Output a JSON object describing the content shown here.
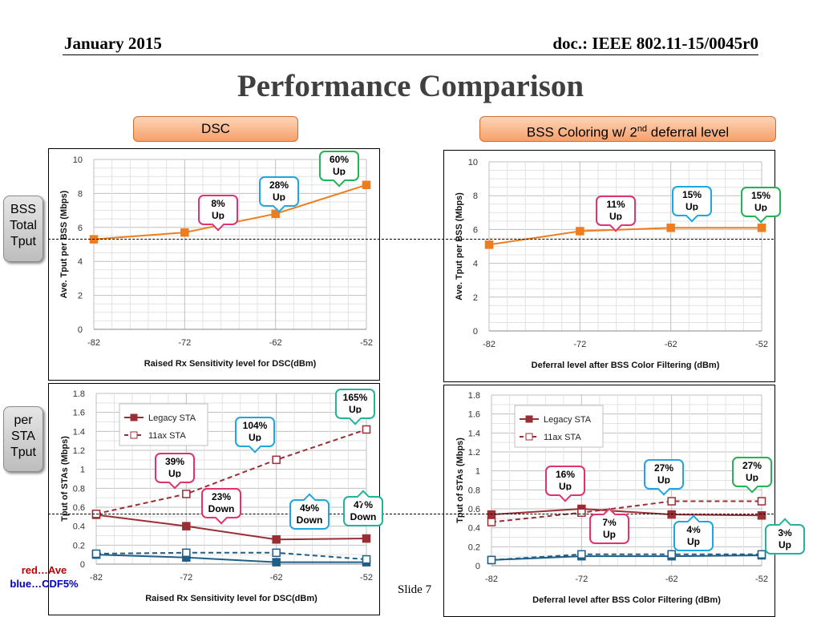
{
  "header": {
    "left": "January 2015",
    "right": "doc.: IEEE 802.11-15/0045r0"
  },
  "title": "Performance Comparison",
  "tags": {
    "dsc": "DSC",
    "bss_prefix": "BSS Coloring w/ 2",
    "bss_sup": "nd",
    "bss_suffix": " deferral level"
  },
  "side_labels": {
    "bss": [
      "BSS",
      "Total",
      "Tput"
    ],
    "sta": [
      "per",
      "STA",
      "Tput"
    ]
  },
  "note": {
    "red": "red…Ave",
    "blue": "blue…CDF5%"
  },
  "slide": "Slide 7",
  "colors": {
    "orange": "#ed7d1f",
    "red": "#9b2d35",
    "blue": "#1f5f87"
  },
  "chart_data": [
    {
      "type": "line",
      "xlabel": "Raised Rx Sensitivity level for DSC(dBm)",
      "ylabel": "Ave. Tput per BSS (Mbps)",
      "x": [
        -82,
        -72,
        -62,
        -52
      ],
      "ylim": [
        0,
        10
      ],
      "yticks": [
        0,
        2,
        4,
        6,
        8,
        10
      ],
      "series": [
        {
          "values": [
            5.3,
            5.7,
            6.8,
            8.5
          ],
          "style": "orange-square"
        }
      ],
      "callouts": [
        {
          "text": [
            "8%",
            "Up"
          ],
          "color": "pink"
        },
        {
          "text": [
            "28%",
            "Up"
          ],
          "color": "blue"
        },
        {
          "text": [
            "60%",
            "Up"
          ],
          "color": "green"
        }
      ]
    },
    {
      "type": "line",
      "xlabel": "Deferral level after BSS Color Filtering (dBm)",
      "ylabel": "Ave. Tput per BSS (Mbps)",
      "x": [
        -82,
        -72,
        -62,
        -52
      ],
      "ylim": [
        0,
        10
      ],
      "yticks": [
        0,
        2,
        4,
        6,
        8,
        10
      ],
      "series": [
        {
          "values": [
            5.1,
            5.9,
            6.1,
            6.1
          ],
          "style": "orange-square"
        }
      ],
      "callouts": [
        {
          "text": [
            "11%",
            "Up"
          ],
          "color": "pink"
        },
        {
          "text": [
            "15%",
            "Up"
          ],
          "color": "blue"
        },
        {
          "text": [
            "15%",
            "Up"
          ],
          "color": "green"
        }
      ]
    },
    {
      "type": "line",
      "xlabel": "Raised Rx Sensitivity level for DSC(dBm)",
      "ylabel": "Tput of STAs (Mbps)",
      "x": [
        -82,
        -72,
        -62,
        -52
      ],
      "ylim": [
        0,
        1.8
      ],
      "yticks": [
        0,
        0.2,
        0.4,
        0.6,
        0.8,
        1,
        1.2,
        1.4,
        1.6,
        1.8
      ],
      "legend": [
        "Legacy STA",
        "11ax STA"
      ],
      "series": [
        {
          "name": "Legacy STA",
          "values": [
            0.52,
            0.4,
            0.26,
            0.27
          ],
          "style": "red-solid"
        },
        {
          "name": "11ax STA",
          "values": [
            0.53,
            0.74,
            1.1,
            1.42
          ],
          "style": "red-dash"
        },
        {
          "values": [
            0.1,
            0.07,
            0.02,
            0.02
          ],
          "style": "blue-solid"
        },
        {
          "values": [
            0.11,
            0.12,
            0.12,
            0.05
          ],
          "style": "blue-dash"
        }
      ],
      "callouts": [
        {
          "text": [
            "39%",
            "Up"
          ],
          "color": "pink"
        },
        {
          "text": [
            "104%",
            "Up"
          ],
          "color": "blue"
        },
        {
          "text": [
            "165%",
            "Up"
          ],
          "color": "teal"
        },
        {
          "text": [
            "23%",
            "Down"
          ],
          "color": "pink"
        },
        {
          "text": [
            "49%",
            "Down"
          ],
          "color": "blue"
        },
        {
          "text": [
            "47%",
            "Down"
          ],
          "color": "teal"
        }
      ]
    },
    {
      "type": "line",
      "xlabel": "Deferral level after BSS Color Filtering (dBm)",
      "ylabel": "Tput of STAs (Mbps)",
      "x": [
        -82,
        -72,
        -62,
        -52
      ],
      "ylim": [
        0,
        1.8
      ],
      "yticks": [
        0,
        0.2,
        0.4,
        0.6,
        0.8,
        1,
        1.2,
        1.4,
        1.6,
        1.8
      ],
      "legend": [
        "Legacy STA",
        "11ax STA"
      ],
      "series": [
        {
          "name": "Legacy STA",
          "values": [
            0.54,
            0.6,
            0.54,
            0.53
          ],
          "style": "red-solid"
        },
        {
          "name": "11ax STA",
          "values": [
            0.46,
            0.56,
            0.68,
            0.68
          ],
          "style": "red-dash"
        },
        {
          "values": [
            0.06,
            0.1,
            0.1,
            0.11
          ],
          "style": "blue-solid"
        },
        {
          "values": [
            0.06,
            0.12,
            0.12,
            0.12
          ],
          "style": "blue-dash"
        }
      ],
      "callouts": [
        {
          "text": [
            "16%",
            "Up"
          ],
          "color": "pink"
        },
        {
          "text": [
            "27%",
            "Up"
          ],
          "color": "blue"
        },
        {
          "text": [
            "27%",
            "Up"
          ],
          "color": "green"
        },
        {
          "text": [
            "7%",
            "Up"
          ],
          "color": "pink"
        },
        {
          "text": [
            "4%",
            "Up"
          ],
          "color": "blue"
        },
        {
          "text": [
            "3%",
            "Up"
          ],
          "color": "teal"
        }
      ]
    }
  ]
}
